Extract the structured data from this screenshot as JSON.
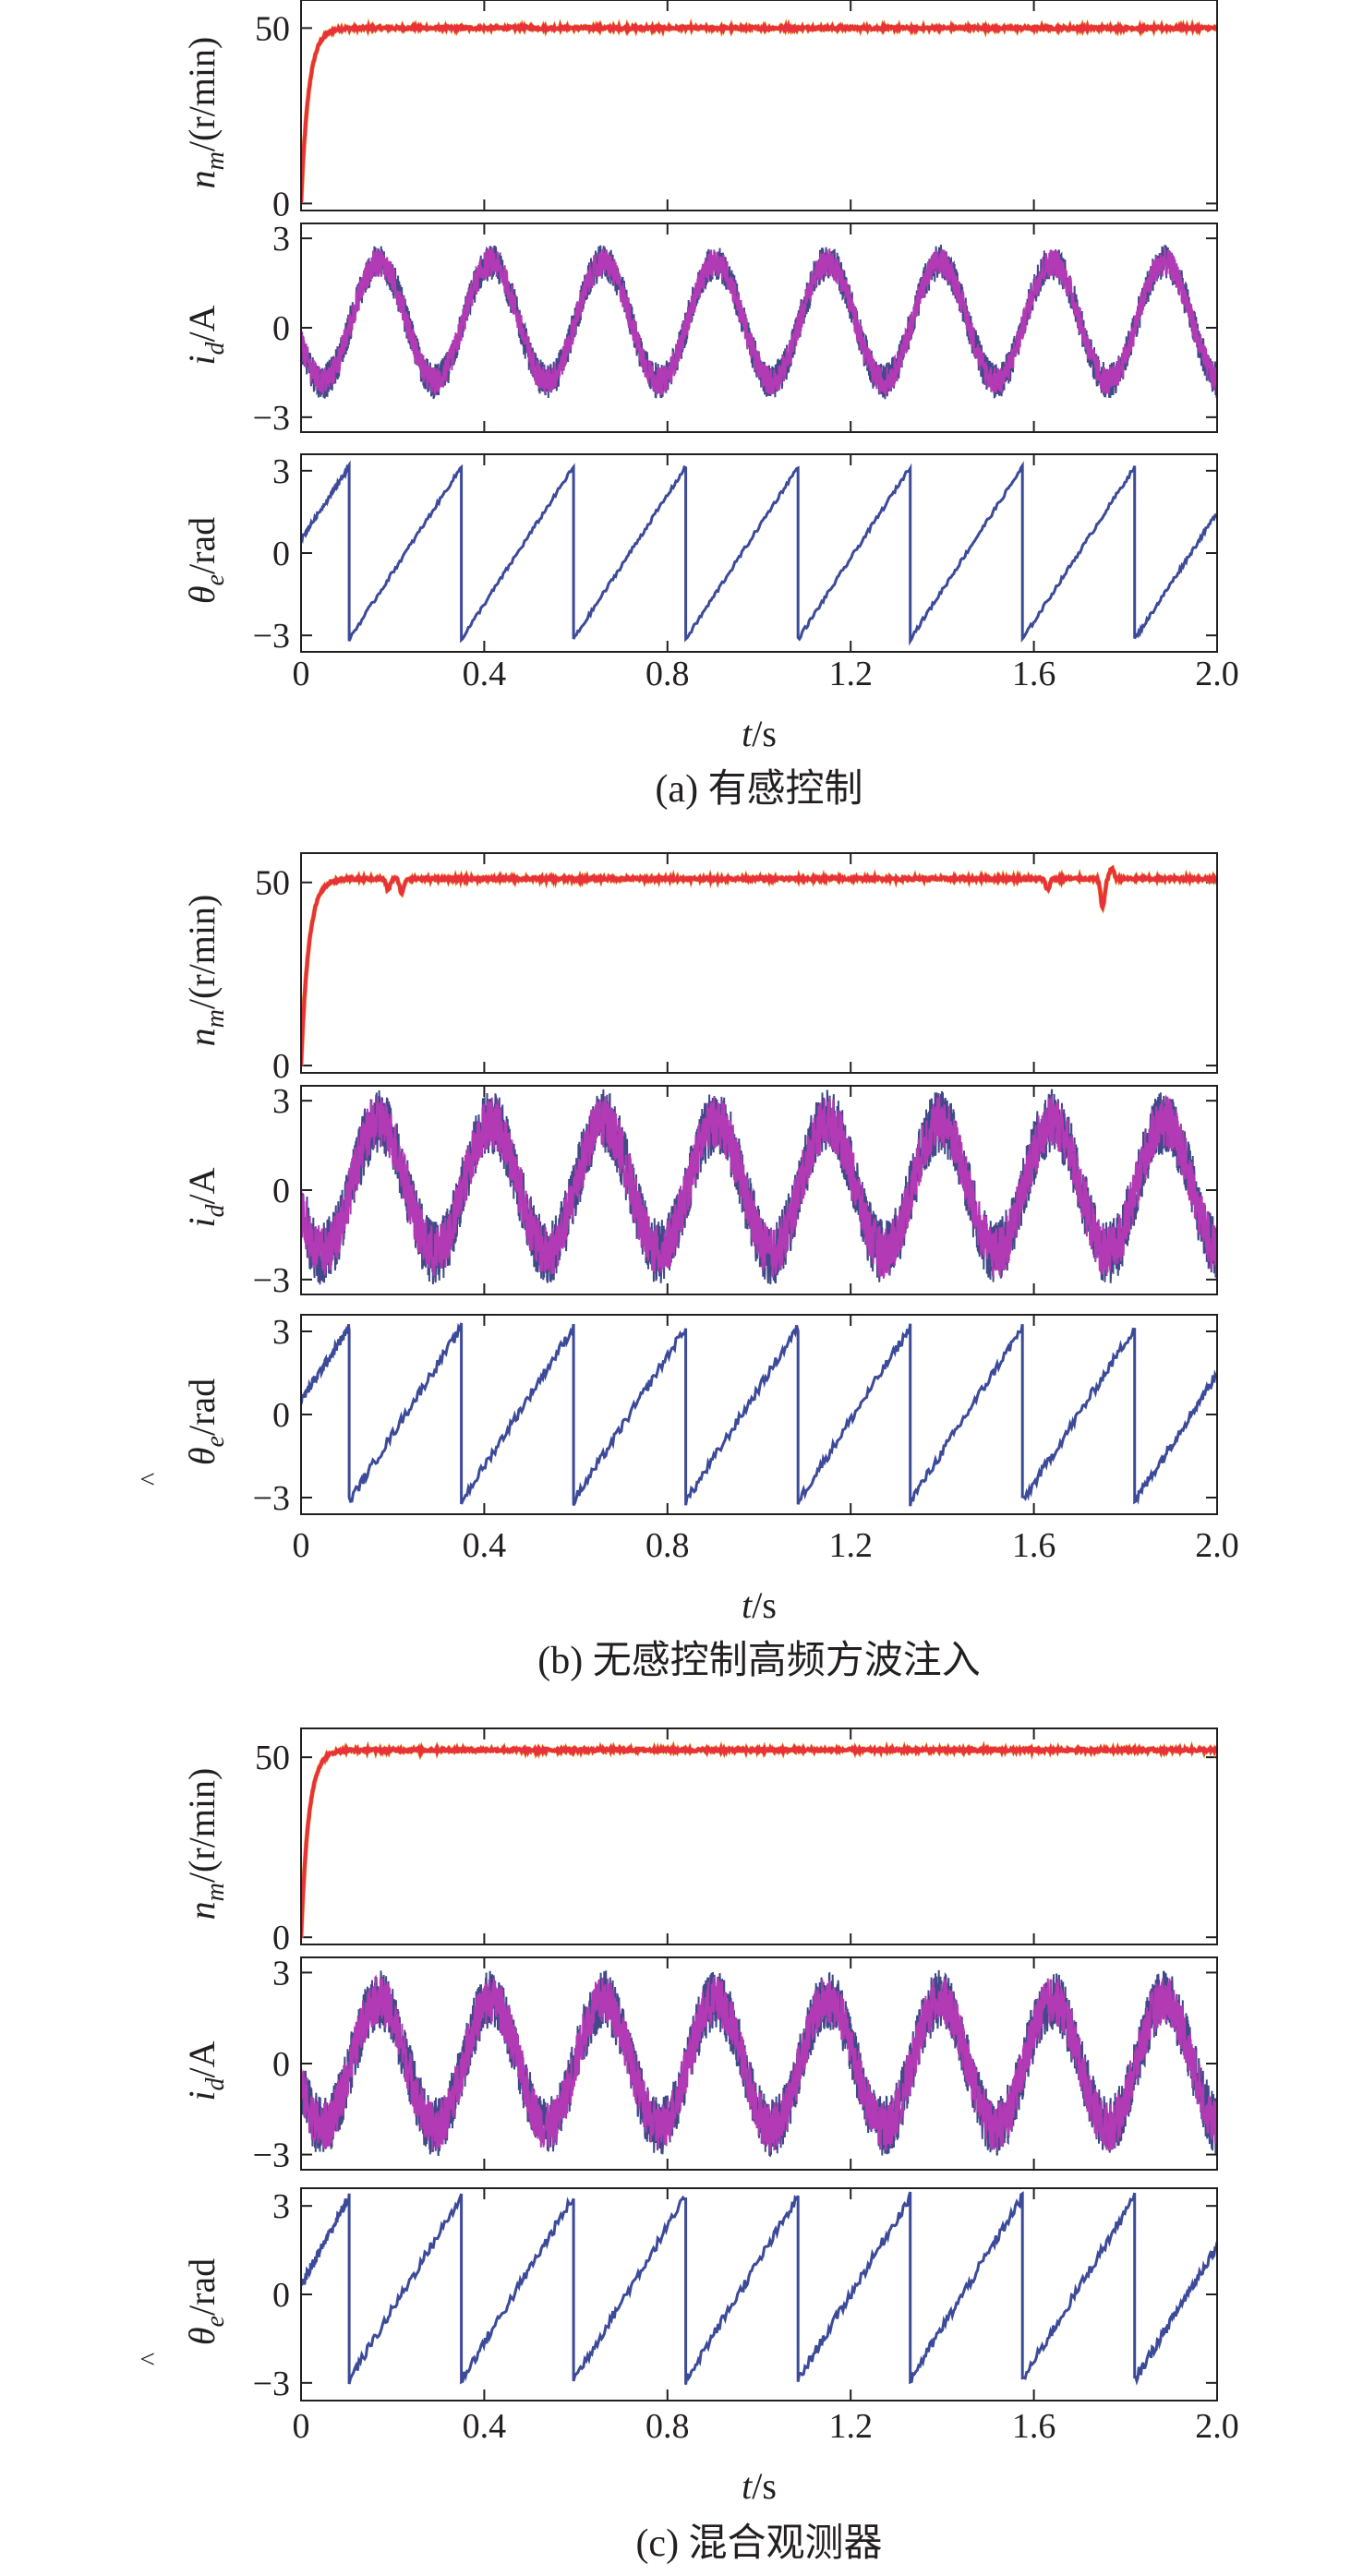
{
  "colors": {
    "speed": "#e8313b",
    "speed_accent": "#e8a33b",
    "current": "#b23ab4",
    "current_under": "#404a88",
    "angle": "#3c4a9a",
    "axis": "#231f20"
  },
  "chart_data": [
    {
      "type": "line",
      "caption": "(a) 有感控制",
      "xlabel": "t/s",
      "x_ticks": [
        "0",
        "0.4",
        "0.8",
        "1.2",
        "1.6",
        "2.0"
      ],
      "xlim": [
        0,
        2.0
      ],
      "panels": [
        {
          "key": "speed",
          "ylabel": "n_m/(r/min)",
          "ylabel_parts": [
            "n",
            "m",
            "/(r/min)"
          ],
          "y_ticks": [
            "0",
            "50"
          ],
          "ylim": [
            -2,
            58
          ],
          "steady_value": 50,
          "rise_time": 0.05,
          "dips": []
        },
        {
          "key": "current",
          "ylabel": "i_d/A",
          "ylabel_parts": [
            "i",
            "d",
            "/A"
          ],
          "y_ticks": [
            "-3",
            "0",
            "3"
          ],
          "ylim": [
            -3.5,
            3.5
          ],
          "amplitude": 2.0,
          "offset": 0.2,
          "noise_band": 0.6,
          "period": 0.245,
          "peaks_at": [
            0.17,
            0.42,
            0.66,
            0.91,
            1.15,
            1.4,
            1.64,
            1.89
          ]
        },
        {
          "key": "angle",
          "ylabel": "θ_e/rad",
          "ylabel_parts": [
            "θ",
            "e",
            "/rad"
          ],
          "hat": false,
          "y_ticks": [
            "-3",
            "0",
            "3"
          ],
          "ylim": [
            -3.6,
            3.6
          ],
          "reset_times": [
            0.105,
            0.35,
            0.595,
            0.84,
            1.085,
            1.33,
            1.575,
            1.82
          ],
          "initial_angle": 0.5,
          "wrap_min": -3.14,
          "wrap_max": 3.14
        }
      ]
    },
    {
      "type": "line",
      "caption": "(b) 无感控制高频方波注入",
      "xlabel": "t/s",
      "x_ticks": [
        "0",
        "0.4",
        "0.8",
        "1.2",
        "1.6",
        "2.0"
      ],
      "xlim": [
        0,
        2.0
      ],
      "panels": [
        {
          "key": "speed",
          "ylabel": "n_m/(r/min)",
          "ylabel_parts": [
            "n",
            "m",
            "/(r/min)"
          ],
          "y_ticks": [
            "0",
            "50"
          ],
          "ylim": [
            -2,
            58
          ],
          "steady_value": 51,
          "rise_time": 0.05,
          "dips": [
            {
              "t": 0.19,
              "depth": -3
            },
            {
              "t": 0.22,
              "depth": -4
            },
            {
              "t": 1.63,
              "depth": -3
            },
            {
              "t": 1.75,
              "depth": -8
            },
            {
              "t": 1.77,
              "depth": 3
            }
          ]
        },
        {
          "key": "current",
          "ylabel": "i_d/A",
          "ylabel_parts": [
            "i",
            "d",
            "/A"
          ],
          "y_ticks": [
            "-3",
            "0",
            "3"
          ],
          "ylim": [
            -3.5,
            3.5
          ],
          "amplitude": 2.2,
          "offset": 0.1,
          "noise_band": 1.1,
          "period": 0.245,
          "peaks_at": [
            0.17,
            0.42,
            0.66,
            0.91,
            1.15,
            1.4,
            1.64,
            1.89
          ]
        },
        {
          "key": "angle",
          "ylabel": "θ_e/rad",
          "ylabel_parts": [
            "θ",
            "e",
            "/rad"
          ],
          "hat": true,
          "y_ticks": [
            "-3",
            "0",
            "3"
          ],
          "ylim": [
            -3.6,
            3.6
          ],
          "reset_times": [
            0.105,
            0.35,
            0.595,
            0.84,
            1.085,
            1.33,
            1.575,
            1.82
          ],
          "initial_angle": 0.5,
          "wrap_min": -3.14,
          "wrap_max": 3.14
        }
      ]
    },
    {
      "type": "line",
      "caption": "(c) 混合观测器",
      "xlabel": "t/s",
      "x_ticks": [
        "0",
        "0.4",
        "0.8",
        "1.2",
        "1.6",
        "2.0"
      ],
      "xlim": [
        0,
        2.0
      ],
      "panels": [
        {
          "key": "speed",
          "ylabel": "n_m/(r/min)",
          "ylabel_parts": [
            "n",
            "m",
            "/(r/min)"
          ],
          "y_ticks": [
            "0",
            "50"
          ],
          "ylim": [
            -2,
            58
          ],
          "steady_value": 52,
          "rise_time": 0.05,
          "dips": []
        },
        {
          "key": "current",
          "ylabel": "i_d/A",
          "ylabel_parts": [
            "i",
            "d",
            "/A"
          ],
          "y_ticks": [
            "-3",
            "0",
            "3"
          ],
          "ylim": [
            -3.5,
            3.5
          ],
          "amplitude": 2.1,
          "offset": 0.0,
          "noise_band": 1.0,
          "period": 0.245,
          "peaks_at": [
            0.17,
            0.42,
            0.66,
            0.91,
            1.15,
            1.4,
            1.64,
            1.89
          ]
        },
        {
          "key": "angle",
          "ylabel": "θ_e/rad",
          "ylabel_parts": [
            "θ",
            "e",
            "/rad"
          ],
          "hat": true,
          "y_ticks": [
            "-3",
            "0",
            "3"
          ],
          "ylim": [
            -3.6,
            3.6
          ],
          "reset_times": [
            0.105,
            0.35,
            0.595,
            0.84,
            1.085,
            1.33,
            1.575,
            1.82
          ],
          "initial_angle": 0.3,
          "wrap_min": -2.9,
          "wrap_max": 3.3
        }
      ]
    }
  ]
}
